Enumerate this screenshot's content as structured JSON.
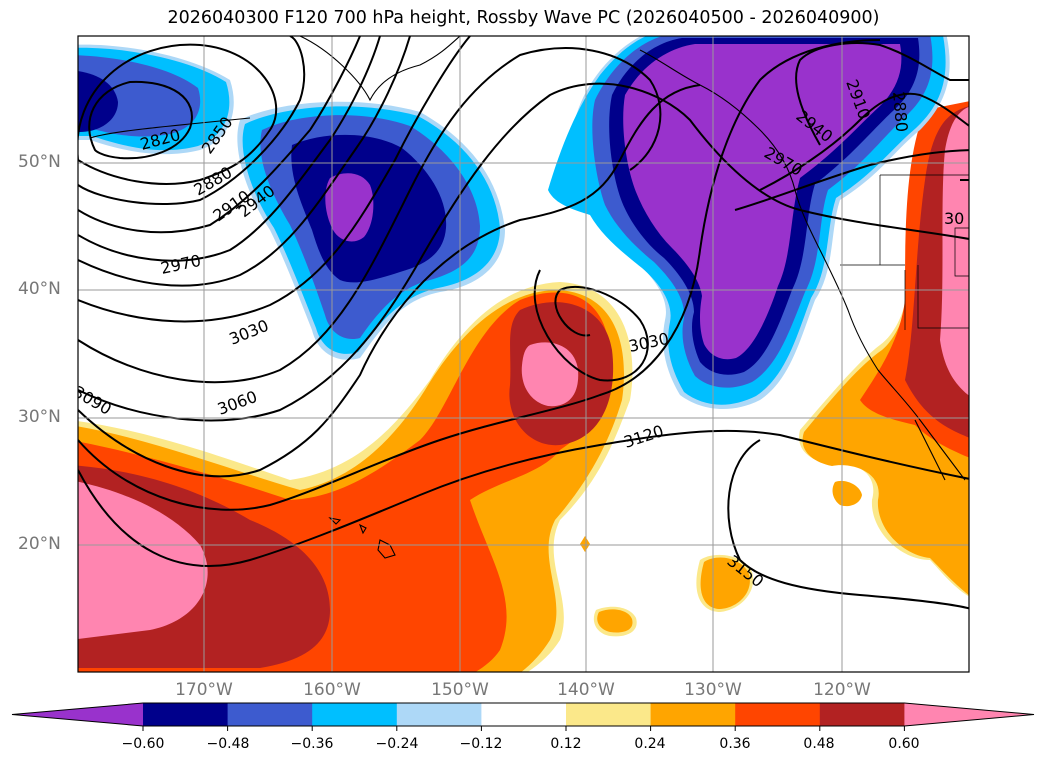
{
  "title": "2026040300 F120 700 hPa height, Rossby Wave PC (2026040500 - 2026040900)",
  "map": {
    "lat_labels": [
      "50°N",
      "40°N",
      "30°N",
      "20°N"
    ],
    "lon_labels": [
      "170°W",
      "160°W",
      "150°W",
      "140°W",
      "130°W",
      "120°W"
    ],
    "contour_labels": [
      "2820",
      "2850",
      "2880",
      "2910",
      "2940",
      "2970",
      "3030",
      "3060",
      "3090",
      "3120",
      "3150",
      "2940",
      "2910",
      "2880",
      "2970",
      "3030",
      "30"
    ]
  },
  "colorbar": {
    "ticks": [
      "−0.60",
      "−0.48",
      "−0.36",
      "−0.24",
      "−0.12",
      "0.12",
      "0.24",
      "0.36",
      "0.48",
      "0.60"
    ],
    "colors": [
      "#9932cc",
      "#00008b",
      "#3d5bcf",
      "#00bfff",
      "#add8f7",
      "#ffffff",
      "#fbe88a",
      "#ffa500",
      "#ff4500",
      "#b22222",
      "#ff85b0"
    ]
  }
}
